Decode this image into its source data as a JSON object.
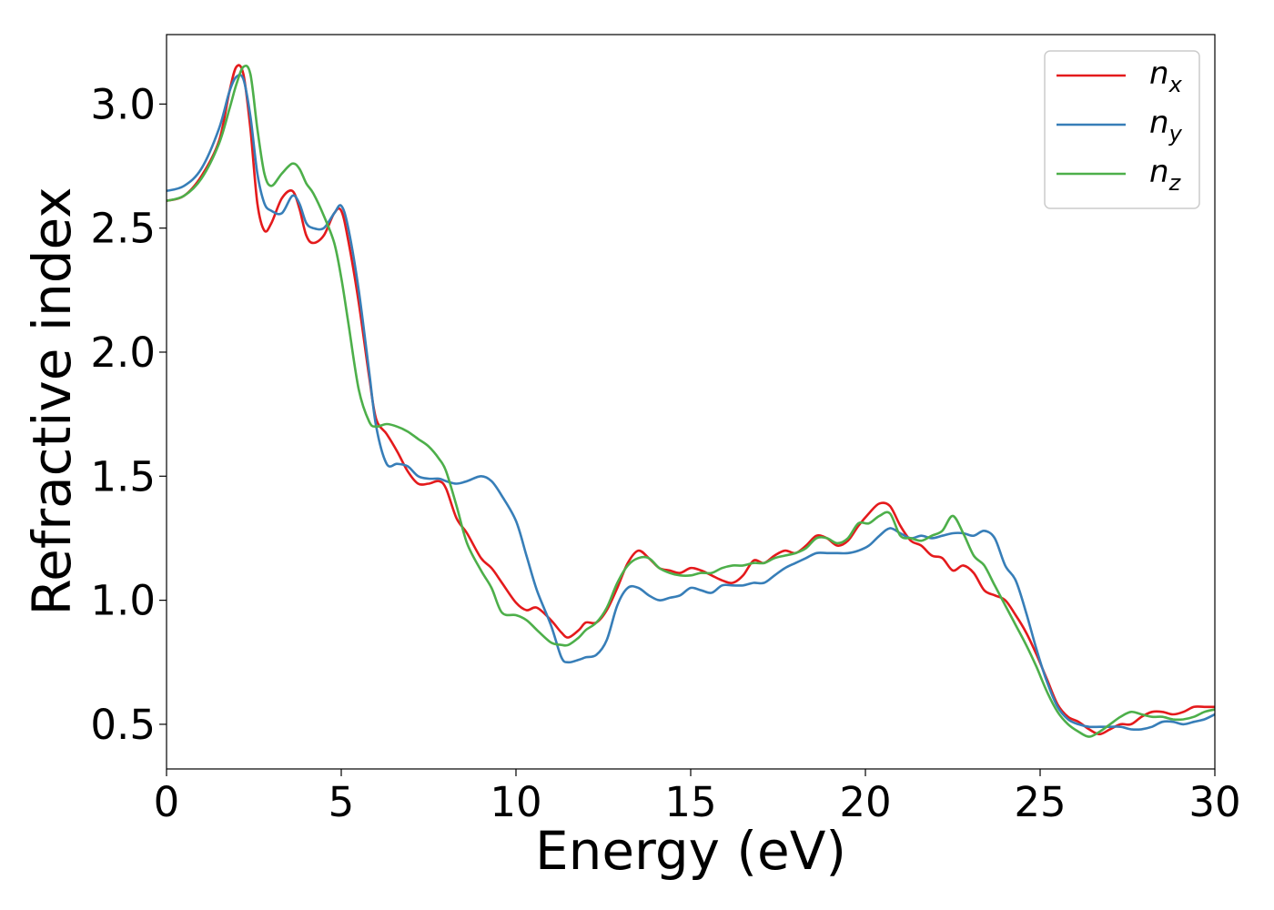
{
  "chart_data": {
    "type": "line",
    "xlabel": "Energy (eV)",
    "ylabel": "Refractive index",
    "xlim": [
      0,
      30
    ],
    "ylim": [
      0.32,
      3.28
    ],
    "xticks": [
      0,
      5,
      10,
      15,
      20,
      25,
      30
    ],
    "xtick_labels": [
      "0",
      "5",
      "10",
      "15",
      "20",
      "25",
      "30"
    ],
    "yticks": [
      0.5,
      1.0,
      1.5,
      2.0,
      2.5,
      3.0
    ],
    "ytick_labels": [
      "0.5",
      "1.0",
      "1.5",
      "2.0",
      "2.5",
      "3.0"
    ],
    "grid": false,
    "legend_position": "top-right",
    "series": [
      {
        "name": "n_x",
        "base": "n",
        "sub": "x",
        "color": "#e41a1c",
        "x": [
          0,
          0.5,
          1.0,
          1.5,
          1.8,
          2.0,
          2.2,
          2.4,
          2.6,
          2.8,
          3.0,
          3.3,
          3.6,
          3.8,
          4.0,
          4.2,
          4.5,
          4.8,
          5.0,
          5.2,
          5.5,
          5.8,
          6.0,
          6.3,
          6.6,
          6.9,
          7.2,
          7.5,
          7.8,
          8.0,
          8.3,
          8.6,
          9.0,
          9.3,
          9.6,
          10.0,
          10.3,
          10.6,
          11.0,
          11.3,
          11.5,
          11.8,
          12.0,
          12.3,
          12.6,
          12.9,
          13.2,
          13.5,
          13.8,
          14.1,
          14.4,
          14.7,
          15.0,
          15.3,
          15.6,
          15.9,
          16.2,
          16.5,
          16.8,
          17.1,
          17.4,
          17.7,
          18.0,
          18.3,
          18.6,
          18.9,
          19.2,
          19.5,
          19.8,
          20.1,
          20.4,
          20.7,
          21.0,
          21.3,
          21.6,
          21.9,
          22.2,
          22.5,
          22.8,
          23.1,
          23.4,
          23.7,
          24.0,
          24.3,
          24.6,
          24.9,
          25.2,
          25.5,
          25.8,
          26.1,
          26.4,
          26.7,
          27.0,
          27.3,
          27.6,
          27.9,
          28.2,
          28.5,
          28.8,
          29.1,
          29.4,
          29.7,
          30.0
        ],
        "y": [
          2.61,
          2.63,
          2.71,
          2.85,
          3.05,
          3.15,
          3.12,
          2.9,
          2.6,
          2.49,
          2.52,
          2.62,
          2.65,
          2.58,
          2.47,
          2.44,
          2.47,
          2.56,
          2.57,
          2.45,
          2.2,
          1.9,
          1.73,
          1.67,
          1.6,
          1.52,
          1.47,
          1.47,
          1.48,
          1.45,
          1.33,
          1.27,
          1.17,
          1.13,
          1.07,
          0.99,
          0.96,
          0.97,
          0.92,
          0.87,
          0.85,
          0.88,
          0.91,
          0.91,
          0.96,
          1.05,
          1.15,
          1.2,
          1.17,
          1.13,
          1.12,
          1.11,
          1.13,
          1.12,
          1.1,
          1.08,
          1.07,
          1.1,
          1.16,
          1.15,
          1.18,
          1.2,
          1.19,
          1.22,
          1.26,
          1.25,
          1.22,
          1.24,
          1.3,
          1.35,
          1.39,
          1.38,
          1.3,
          1.24,
          1.22,
          1.18,
          1.17,
          1.12,
          1.14,
          1.11,
          1.04,
          1.02,
          1.0,
          0.94,
          0.87,
          0.78,
          0.68,
          0.58,
          0.53,
          0.51,
          0.48,
          0.46,
          0.48,
          0.5,
          0.5,
          0.53,
          0.55,
          0.55,
          0.54,
          0.55,
          0.57,
          0.57,
          0.57
        ]
      },
      {
        "name": "n_y",
        "base": "n",
        "sub": "y",
        "color": "#377eb8",
        "x": [
          0,
          0.5,
          1.0,
          1.5,
          1.8,
          2.0,
          2.2,
          2.4,
          2.6,
          2.8,
          3.0,
          3.3,
          3.6,
          3.8,
          4.0,
          4.2,
          4.5,
          4.8,
          5.0,
          5.2,
          5.5,
          5.8,
          6.0,
          6.3,
          6.6,
          6.9,
          7.2,
          7.5,
          7.8,
          8.0,
          8.3,
          8.6,
          9.0,
          9.3,
          9.6,
          10.0,
          10.3,
          10.6,
          11.0,
          11.3,
          11.5,
          11.8,
          12.0,
          12.3,
          12.6,
          12.9,
          13.2,
          13.5,
          13.8,
          14.1,
          14.4,
          14.7,
          15.0,
          15.3,
          15.6,
          15.9,
          16.2,
          16.5,
          16.8,
          17.1,
          17.4,
          17.7,
          18.0,
          18.3,
          18.6,
          18.9,
          19.2,
          19.5,
          19.8,
          20.1,
          20.4,
          20.7,
          21.0,
          21.3,
          21.6,
          21.9,
          22.2,
          22.5,
          22.8,
          23.1,
          23.4,
          23.7,
          24.0,
          24.3,
          24.6,
          24.9,
          25.2,
          25.5,
          25.8,
          26.1,
          26.4,
          26.7,
          27.0,
          27.3,
          27.6,
          27.9,
          28.2,
          28.5,
          28.8,
          29.1,
          29.4,
          29.7,
          30.0
        ],
        "y": [
          2.65,
          2.67,
          2.74,
          2.9,
          3.05,
          3.11,
          3.1,
          2.95,
          2.72,
          2.6,
          2.57,
          2.56,
          2.63,
          2.6,
          2.52,
          2.5,
          2.5,
          2.56,
          2.59,
          2.5,
          2.25,
          1.92,
          1.7,
          1.55,
          1.55,
          1.54,
          1.5,
          1.49,
          1.49,
          1.48,
          1.47,
          1.48,
          1.5,
          1.48,
          1.42,
          1.32,
          1.18,
          1.04,
          0.9,
          0.77,
          0.75,
          0.76,
          0.77,
          0.78,
          0.84,
          0.98,
          1.05,
          1.05,
          1.02,
          1.0,
          1.01,
          1.02,
          1.05,
          1.04,
          1.03,
          1.06,
          1.06,
          1.06,
          1.07,
          1.07,
          1.1,
          1.13,
          1.15,
          1.17,
          1.19,
          1.19,
          1.19,
          1.19,
          1.2,
          1.22,
          1.26,
          1.29,
          1.27,
          1.25,
          1.26,
          1.25,
          1.26,
          1.27,
          1.27,
          1.26,
          1.28,
          1.25,
          1.14,
          1.08,
          0.95,
          0.8,
          0.67,
          0.57,
          0.52,
          0.5,
          0.49,
          0.49,
          0.49,
          0.49,
          0.48,
          0.48,
          0.49,
          0.51,
          0.51,
          0.5,
          0.51,
          0.52,
          0.54
        ]
      },
      {
        "name": "n_z",
        "base": "n",
        "sub": "z",
        "color": "#4daf4a",
        "x": [
          0,
          0.5,
          1.0,
          1.5,
          1.8,
          2.0,
          2.2,
          2.4,
          2.6,
          2.8,
          3.0,
          3.3,
          3.6,
          3.8,
          4.0,
          4.2,
          4.5,
          4.8,
          5.0,
          5.2,
          5.5,
          5.8,
          6.0,
          6.3,
          6.6,
          6.9,
          7.2,
          7.5,
          7.8,
          8.0,
          8.3,
          8.6,
          9.0,
          9.3,
          9.6,
          10.0,
          10.3,
          10.6,
          11.0,
          11.3,
          11.5,
          11.8,
          12.0,
          12.3,
          12.6,
          12.9,
          13.2,
          13.5,
          13.8,
          14.1,
          14.4,
          14.7,
          15.0,
          15.3,
          15.6,
          15.9,
          16.2,
          16.5,
          16.8,
          17.1,
          17.4,
          17.7,
          18.0,
          18.3,
          18.6,
          18.9,
          19.2,
          19.5,
          19.8,
          20.1,
          20.4,
          20.7,
          21.0,
          21.3,
          21.6,
          21.9,
          22.2,
          22.5,
          22.8,
          23.1,
          23.4,
          23.7,
          24.0,
          24.3,
          24.6,
          24.9,
          25.2,
          25.5,
          25.8,
          26.1,
          26.4,
          26.7,
          27.0,
          27.3,
          27.6,
          27.9,
          28.2,
          28.5,
          28.8,
          29.1,
          29.4,
          29.7,
          30.0
        ],
        "y": [
          2.61,
          2.63,
          2.7,
          2.84,
          2.98,
          3.08,
          3.15,
          3.12,
          2.9,
          2.72,
          2.67,
          2.72,
          2.76,
          2.74,
          2.68,
          2.64,
          2.55,
          2.44,
          2.3,
          2.12,
          1.85,
          1.72,
          1.7,
          1.71,
          1.7,
          1.68,
          1.65,
          1.62,
          1.57,
          1.52,
          1.38,
          1.23,
          1.12,
          1.05,
          0.95,
          0.94,
          0.92,
          0.88,
          0.83,
          0.82,
          0.82,
          0.85,
          0.88,
          0.91,
          0.97,
          1.07,
          1.14,
          1.17,
          1.17,
          1.13,
          1.11,
          1.1,
          1.1,
          1.11,
          1.11,
          1.13,
          1.14,
          1.14,
          1.15,
          1.15,
          1.17,
          1.18,
          1.19,
          1.21,
          1.25,
          1.25,
          1.23,
          1.25,
          1.31,
          1.31,
          1.34,
          1.35,
          1.26,
          1.25,
          1.24,
          1.26,
          1.28,
          1.34,
          1.27,
          1.18,
          1.14,
          1.06,
          0.98,
          0.9,
          0.82,
          0.73,
          0.63,
          0.55,
          0.5,
          0.47,
          0.45,
          0.47,
          0.5,
          0.53,
          0.55,
          0.54,
          0.53,
          0.53,
          0.52,
          0.52,
          0.53,
          0.55,
          0.56
        ]
      }
    ]
  }
}
